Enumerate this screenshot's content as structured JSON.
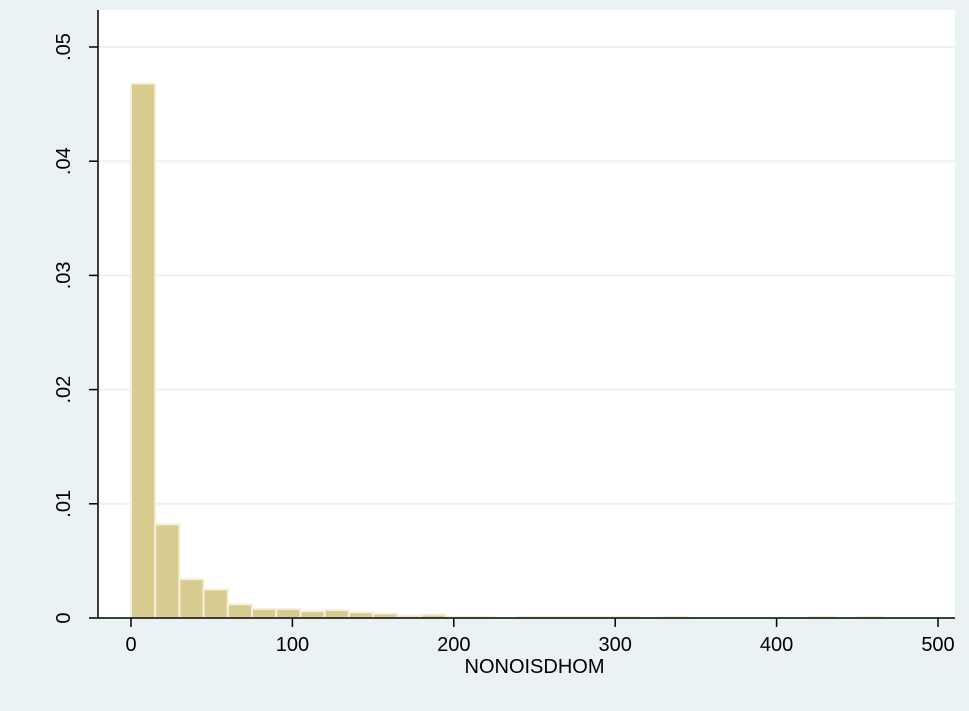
{
  "colors": {
    "background": "#eaf2f3",
    "plot_background": "#ffffff",
    "bar_fill": "#d8cb8f",
    "bar_stroke": "#f5f0d8",
    "grid": "#eaf2f3",
    "axis": "#000000"
  },
  "chart_data": {
    "type": "bar",
    "title": "",
    "xlabel": "NONOISDHOM",
    "ylabel": "",
    "xlim": [
      -18,
      505
    ],
    "ylim": [
      0,
      0.05
    ],
    "xticks": [
      0,
      100,
      200,
      300,
      400,
      500
    ],
    "xtick_labels": [
      "0",
      "100",
      "200",
      "300",
      "400",
      "500"
    ],
    "yticks": [
      0,
      0.01,
      0.02,
      0.03,
      0.04,
      0.05
    ],
    "ytick_labels": [
      "0",
      ".01",
      ".02",
      ".03",
      ".04",
      ".05"
    ],
    "grid": true,
    "legend": "none",
    "bin_width": 15,
    "bin_start": 0,
    "values": [
      0.0468,
      0.0082,
      0.0034,
      0.0025,
      0.0012,
      0.0008,
      0.0008,
      0.0006,
      0.0007,
      0.0005,
      0.0004,
      0.0002,
      0.0003,
      0.0001,
      0.0001,
      0.0,
      0.0001,
      0.0001,
      0.0001,
      0.0001,
      0.0001,
      0.0,
      0.0001,
      0.0,
      0.0,
      0.0,
      0.0,
      0.0,
      0.0001,
      0.0,
      0.0001
    ]
  }
}
